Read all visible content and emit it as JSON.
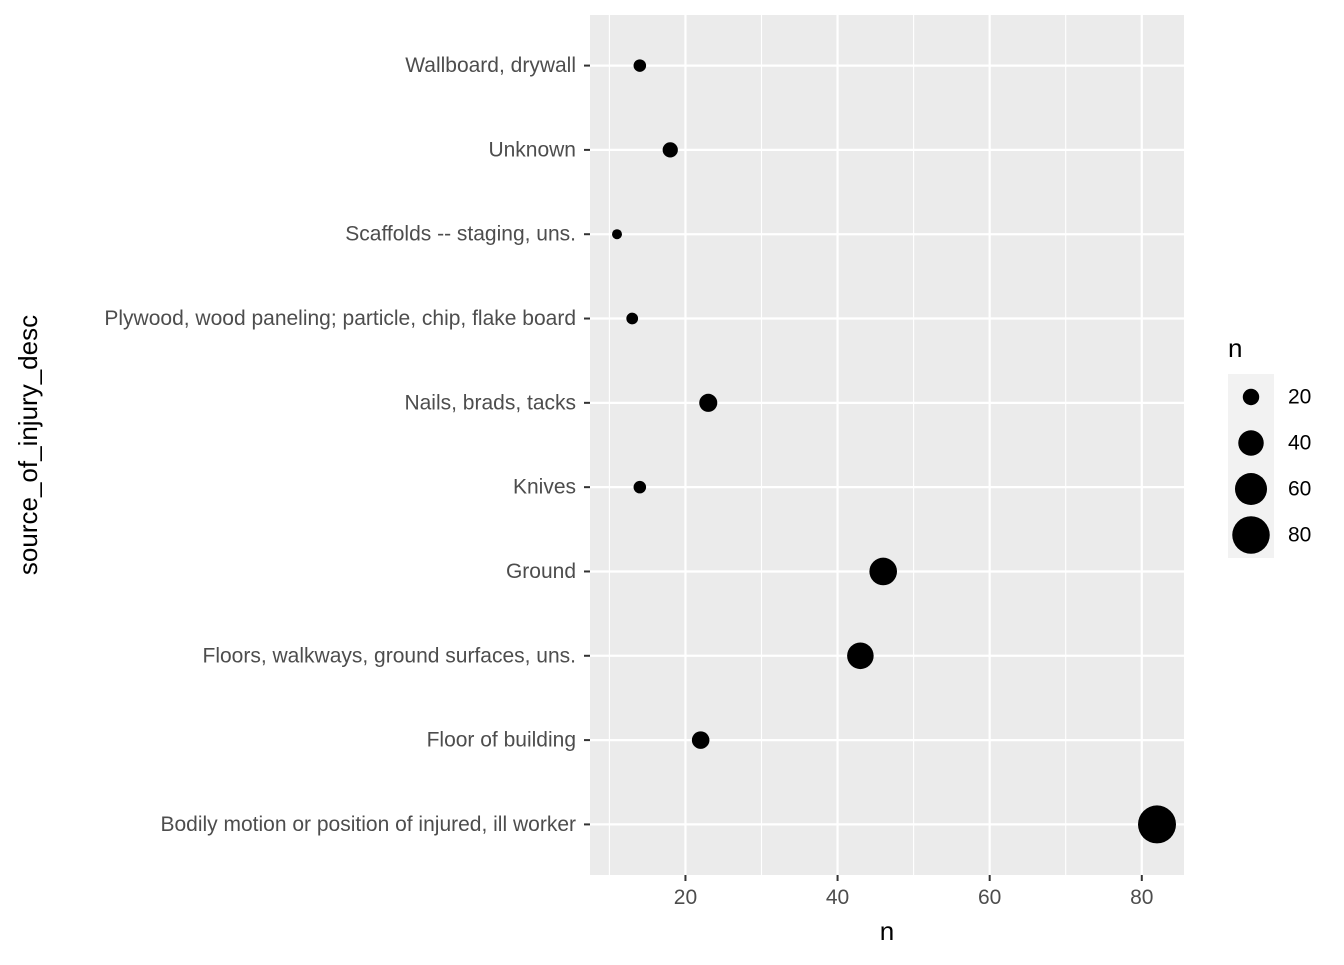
{
  "chart_data": {
    "type": "scatter",
    "title": "",
    "xlabel": "n",
    "ylabel": "source_of_injury_desc",
    "xlim": [
      7.45,
      85.55
    ],
    "xticks": [
      20,
      40,
      60,
      80
    ],
    "x_minor_ticks": [
      10,
      30,
      50,
      70
    ],
    "grid": true,
    "categories": [
      "Bodily motion or position of injured, ill worker",
      "Floor of building",
      "Floors, walkways, ground surfaces, uns.",
      "Ground",
      "Knives",
      "Nails, brads, tacks",
      "Plywood, wood paneling; particle, chip, flake board",
      "Scaffolds -- staging, uns.",
      "Unknown",
      "Wallboard, drywall"
    ],
    "values": [
      82,
      22,
      43,
      46,
      14,
      23,
      13,
      11,
      18,
      14
    ],
    "size_encoding": "n",
    "legend": {
      "title": "n",
      "position": "right",
      "entries": [
        20,
        40,
        60,
        80
      ]
    },
    "colors": {
      "panel": "#ebebeb",
      "grid": "#ffffff",
      "point": "#000000"
    }
  }
}
